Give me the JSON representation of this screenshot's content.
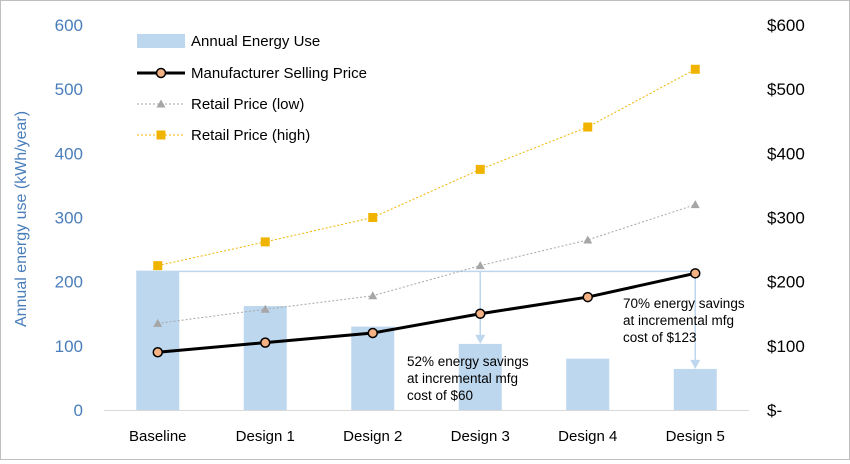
{
  "chart_data": {
    "type": "bar",
    "categories": [
      "Baseline",
      "Design 1",
      "Design 2",
      "Design 3",
      "Design 4",
      "Design 5"
    ],
    "series": [
      {
        "name": "Annual Energy Use",
        "type": "bar",
        "axis": "left",
        "color": "#bdd7ee",
        "values": [
          216,
          162,
          130,
          103,
          80,
          64
        ]
      },
      {
        "name": "Manufacturer Selling Price",
        "type": "line",
        "axis": "right",
        "color": "#000000",
        "marker_color": "#f4b183",
        "values": [
          90,
          105,
          120,
          150,
          176,
          213
        ]
      },
      {
        "name": "Retail Price (low)",
        "type": "line",
        "axis": "right",
        "color": "#a6a6a6",
        "values": [
          135,
          157,
          178,
          225,
          265,
          320
        ]
      },
      {
        "name": "Retail Price (high)",
        "type": "line",
        "axis": "right",
        "color": "#f0b400",
        "values": [
          225,
          262,
          300,
          375,
          441,
          531
        ]
      }
    ],
    "ylabel": "Annual energy use (kWh/year)",
    "ylim": [
      0,
      600
    ],
    "yticks": [
      "0",
      "100",
      "200",
      "300",
      "400",
      "500",
      "600"
    ],
    "y2lim": [
      0,
      600
    ],
    "y2ticks": [
      "$-",
      "$100",
      "$200",
      "$300",
      "$400",
      "$500",
      "$600"
    ],
    "grid": false,
    "legend_position": "top-left",
    "annotations": [
      {
        "lines": [
          "52% energy savings",
          "at incremental mfg",
          "cost of $60"
        ],
        "category": "Design 3"
      },
      {
        "lines": [
          "70% energy savings",
          "at incremental mfg",
          "cost of $123"
        ],
        "category": "Design 5"
      }
    ]
  }
}
